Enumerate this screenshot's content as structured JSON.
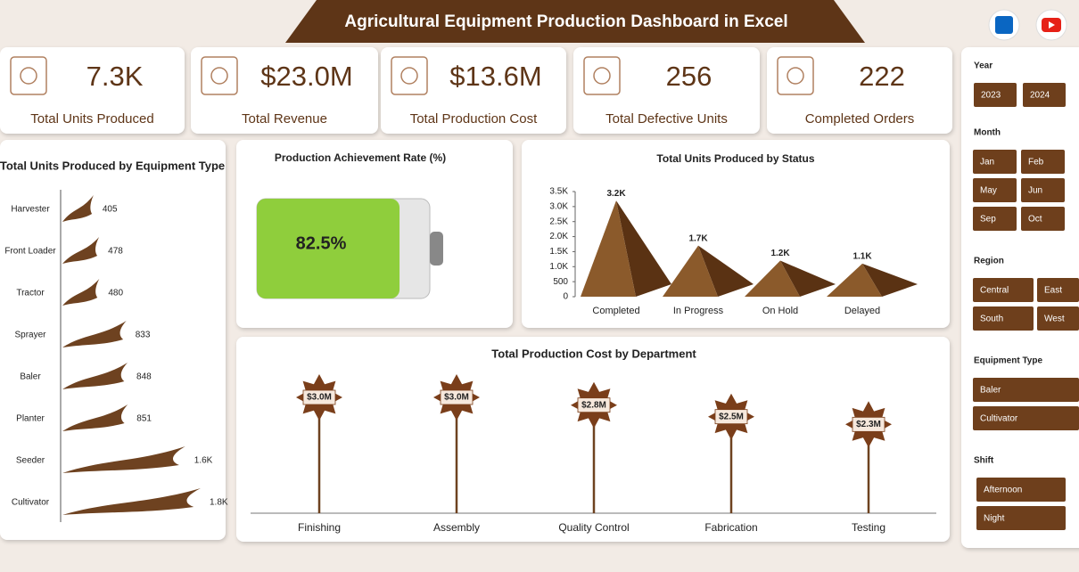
{
  "title": "Agricultural Equipment Production Dashboard in Excel",
  "kpis": [
    {
      "value": "7.3K",
      "label": "Total Units Produced"
    },
    {
      "value": "$23.0M",
      "label": "Total Revenue"
    },
    {
      "value": "$13.6M",
      "label": "Total Production Cost"
    },
    {
      "value": "256",
      "label": "Total Defective Units"
    },
    {
      "value": "222",
      "label": "Completed Orders"
    }
  ],
  "chart_data": [
    {
      "type": "hbar",
      "title": "Total Units Produced by Equipment Type",
      "categories": [
        "Harvester",
        "Front Loader",
        "Tractor",
        "Sprayer",
        "Baler",
        "Planter",
        "Seeder",
        "Cultivator"
      ],
      "values": [
        405,
        478,
        480,
        833,
        848,
        851,
        1600,
        1800
      ],
      "value_labels": [
        "405",
        "478",
        "480",
        "833",
        "848",
        "851",
        "1.6K",
        "1.8K"
      ],
      "color": "#6e4220"
    },
    {
      "type": "battery",
      "title": "Production Achievement Rate (%)",
      "values": [
        82.5
      ],
      "value_labels": [
        "82.5%"
      ],
      "xlim": [
        0,
        100
      ],
      "color": "#8fce3c"
    },
    {
      "type": "pyramid",
      "title": "Total Units Produced by Status",
      "categories": [
        "Completed",
        "In Progress",
        "On Hold",
        "Delayed"
      ],
      "values": [
        3200,
        1700,
        1200,
        1100
      ],
      "value_labels": [
        "3.2K",
        "1.7K",
        "1.2K",
        "1.1K"
      ],
      "ylim": [
        0,
        3500
      ],
      "yticks": [
        0,
        500,
        {
          "value": 1000,
          "label": "1.0K"
        },
        {
          "value": 1500,
          "label": "1.5K"
        },
        {
          "value": 2000,
          "label": "2.0K"
        },
        {
          "value": 2500,
          "label": "2.5K"
        },
        {
          "value": 3000,
          "label": "3.0K"
        },
        {
          "value": 3500,
          "label": "3.5K"
        }
      ],
      "color": "#8b5a2b"
    },
    {
      "type": "lollipop",
      "title": "Total Production Cost by Department",
      "categories": [
        "Finishing",
        "Assembly",
        "Quality Control",
        "Fabrication",
        "Testing"
      ],
      "values": [
        3000000,
        3000000,
        2800000,
        2500000,
        2300000
      ],
      "value_labels": [
        "$3.0M",
        "$3.0M",
        "$2.8M",
        "$2.5M",
        "$2.3M"
      ],
      "color": "#6e4220"
    }
  ],
  "slicers": [
    {
      "title": "Year",
      "items": [
        "2023",
        "2024"
      ]
    },
    {
      "title": "Month",
      "items": [
        "Jan",
        "Feb",
        "May",
        "Jun",
        "Sep",
        "Oct"
      ]
    },
    {
      "title": "Region",
      "items": [
        "Central",
        "East",
        "South",
        "West"
      ]
    },
    {
      "title": "Equipment Type",
      "items": [
        "Baler",
        "Cultivator"
      ]
    },
    {
      "title": "Shift",
      "items": [
        "Afternoon",
        "Night"
      ]
    }
  ]
}
